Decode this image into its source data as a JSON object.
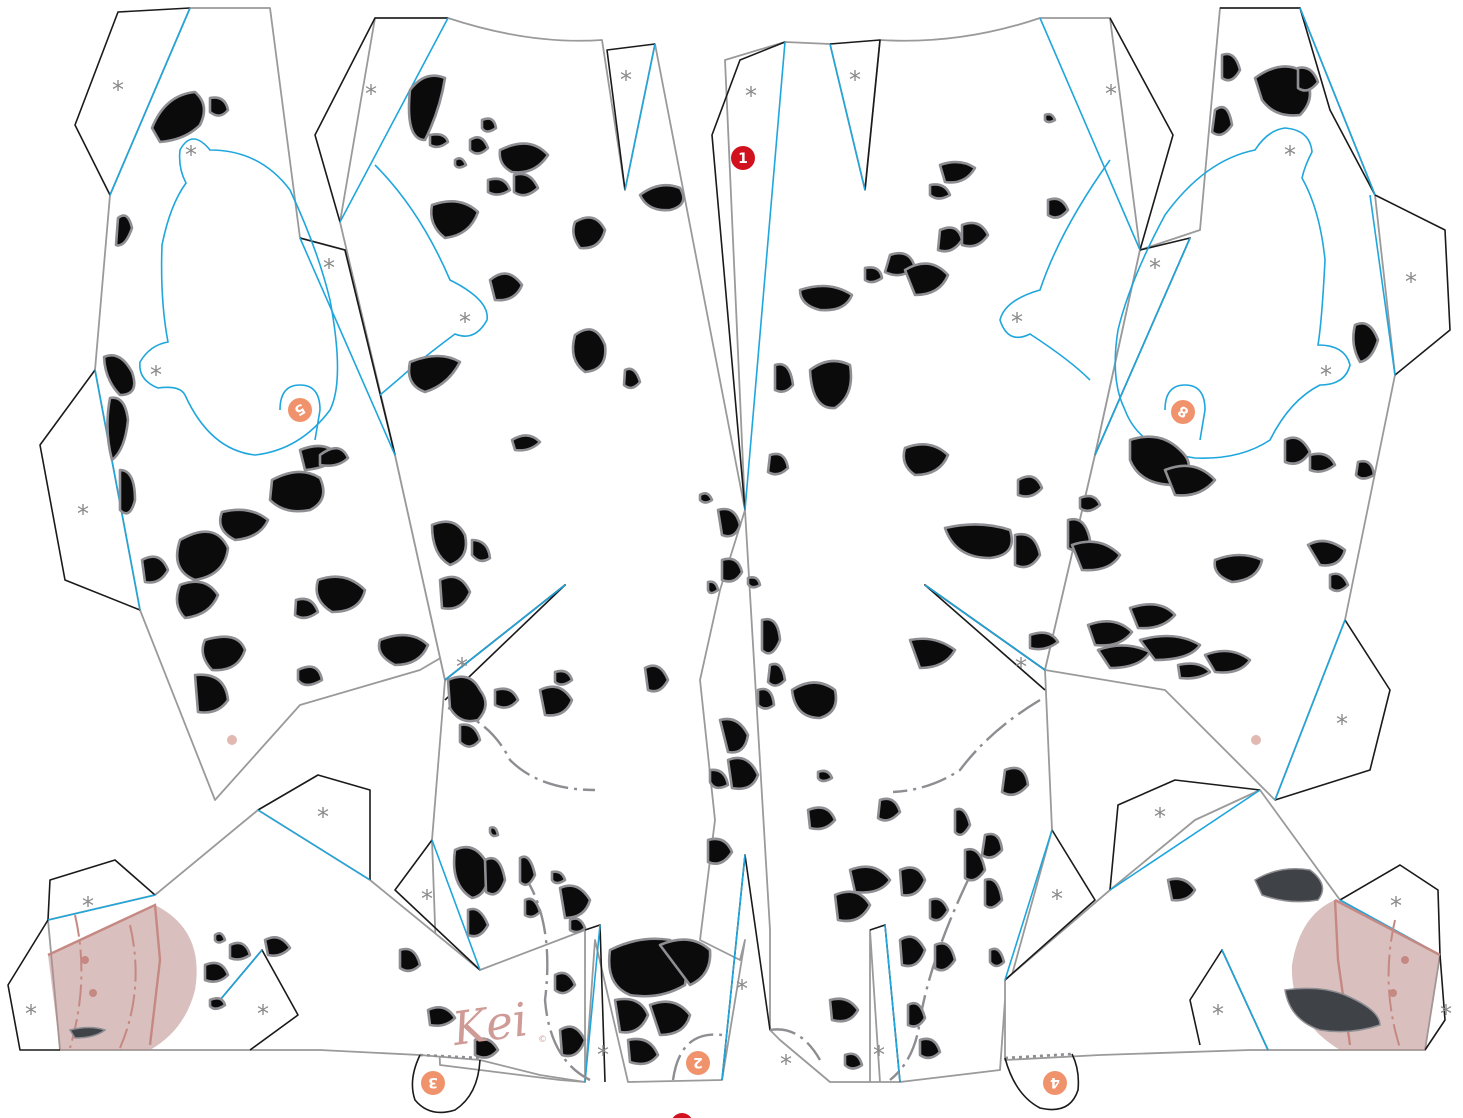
{
  "glue_mark_glyph": "*",
  "watermark": {
    "signature": "Kei",
    "copyright": "©"
  },
  "badges": [
    {
      "id": "1",
      "label": "1",
      "color": "#d2111f"
    },
    {
      "id": "2",
      "label": "2",
      "color": "#f0936d"
    },
    {
      "id": "3",
      "label": "3",
      "color": "#f0936d"
    },
    {
      "id": "4",
      "label": "4",
      "color": "#f0936d"
    },
    {
      "id": "5",
      "label": "5",
      "color": "#f0936d"
    },
    {
      "id": "8",
      "label": "8",
      "color": "#f0936d"
    }
  ],
  "colors": {
    "cut_line": "#1a1a1a",
    "fold_line": "#1fa6dd",
    "outline": "#9a9a9a",
    "spot_fill": "#0b0b0b",
    "spot_stroke": "#8e8e93",
    "glue_mark": "#8a8a8a",
    "badge_red": "#d2111f",
    "badge_orange": "#f0936d",
    "blush": "#b98c8a",
    "paper": "#ffffff"
  },
  "icons": [
    "glue-asterisk-icon",
    "number-badge-icon",
    "signature-watermark-icon"
  ]
}
